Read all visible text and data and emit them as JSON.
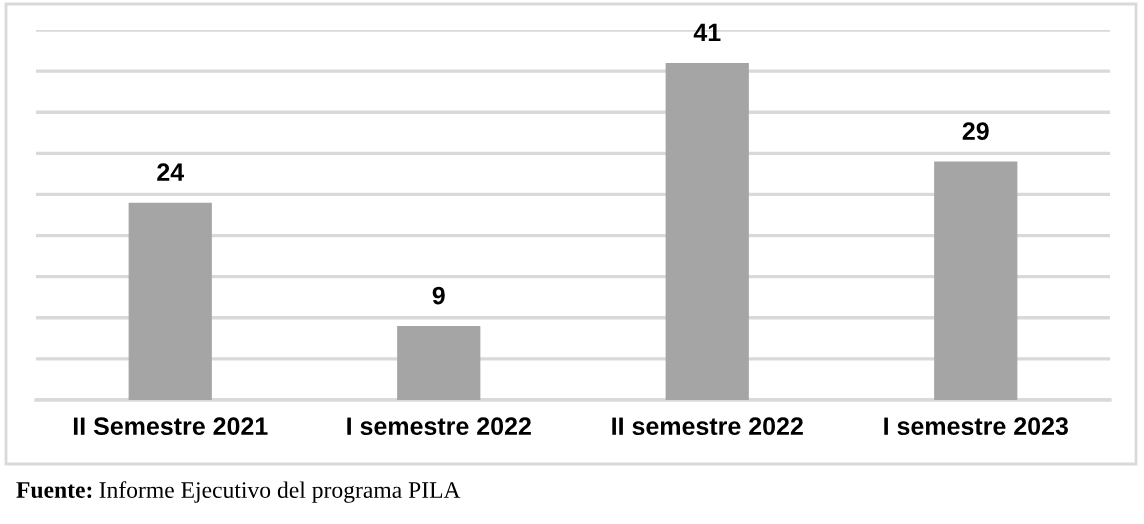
{
  "chart_data": {
    "type": "bar",
    "categories": [
      "II Semestre 2021",
      "I semestre 2022",
      "II semestre 2022",
      "I semestre 2023"
    ],
    "values": [
      24,
      9,
      41,
      29
    ],
    "color": "#a5a5a5",
    "data_labels": true,
    "ylim": [
      0,
      45
    ],
    "yticks": [
      {
        "value": 0,
        "label": null
      },
      {
        "value": 5,
        "label": null
      },
      {
        "value": 10,
        "label": null
      },
      {
        "value": 15,
        "label": null
      },
      {
        "value": 20,
        "label": null
      },
      {
        "value": 25,
        "label": null
      },
      {
        "value": 30,
        "label": null
      },
      {
        "value": 35,
        "label": null
      },
      {
        "value": 40,
        "label": null
      },
      {
        "value": 45,
        "label": null
      }
    ],
    "tick_labels": "x",
    "grid": "y",
    "annotations": [
      "Fuente: Informe Ejecutivo del programa PILA"
    ]
  }
}
